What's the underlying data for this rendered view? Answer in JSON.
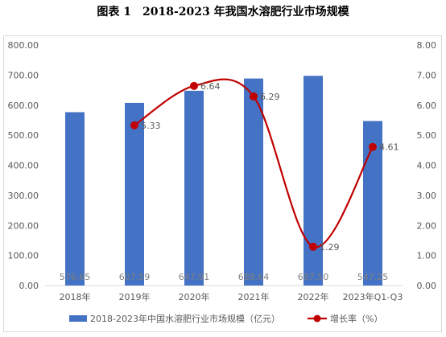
{
  "chart_data": {
    "type": "bar+line",
    "title": "图表 1　2018-2023 年我国水溶肥行业市场规模",
    "categories": [
      "2018年",
      "2019年",
      "2020年",
      "2021年",
      "2022年",
      "2023年Q1-Q3"
    ],
    "series": [
      {
        "name": "2018-2023年中国水溶肥行业市场规模（亿元）",
        "type": "bar",
        "axis": "left",
        "values": [
          576.65,
          607.59,
          647.91,
          688.64,
          697.5,
          547.25
        ],
        "labels": [
          "576.65",
          "607.59",
          "647.91",
          "688.64",
          "697.50",
          "547.25"
        ]
      },
      {
        "name": "增长率（%）",
        "type": "line",
        "axis": "right",
        "values": [
          null,
          5.33,
          6.64,
          6.29,
          1.29,
          4.61
        ],
        "labels": [
          "",
          "5.33",
          "6.64",
          "6.29",
          "1.29",
          "4.61"
        ]
      }
    ],
    "y_left": {
      "ylim": [
        0,
        800
      ],
      "ticks": [
        "0.00",
        "100.00",
        "200.00",
        "300.00",
        "400.00",
        "500.00",
        "600.00",
        "700.00",
        "800.00"
      ]
    },
    "y_right": {
      "ylim": [
        0,
        8
      ],
      "ticks": [
        "0.00",
        "1.00",
        "2.00",
        "3.00",
        "4.00",
        "5.00",
        "6.00",
        "7.00",
        "8.00"
      ]
    },
    "grid": false,
    "legend": "bottom",
    "colors": {
      "bar": "#4472c4",
      "line": "#c00000",
      "axis_text": "#595959"
    }
  }
}
